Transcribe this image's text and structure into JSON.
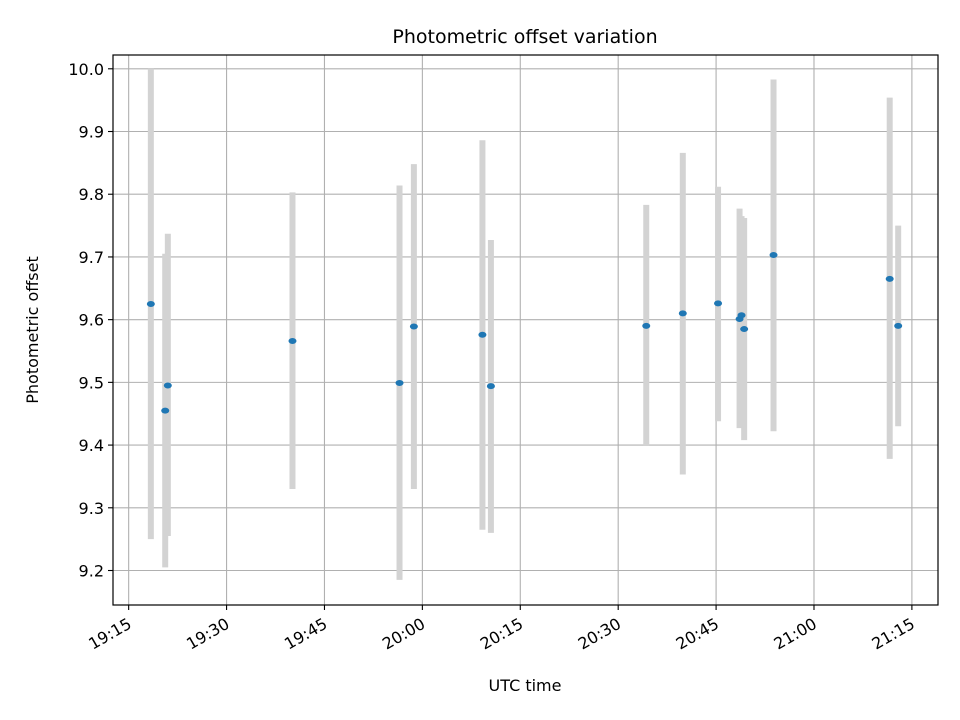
{
  "chart_data": {
    "type": "scatter",
    "title": "Photometric offset variation",
    "xlabel": "UTC time",
    "ylabel": "Photometric offset",
    "x_ticks": [
      "19:15",
      "19:30",
      "19:45",
      "20:00",
      "20:15",
      "20:30",
      "20:45",
      "21:00",
      "21:15"
    ],
    "y_ticks": [
      "9.2",
      "9.3",
      "9.4",
      "9.5",
      "9.6",
      "9.7",
      "9.8",
      "9.9",
      "10.0"
    ],
    "xlim": [
      "19:12.6",
      "21:19.0"
    ],
    "ylim": [
      9.145,
      10.022
    ],
    "grid": true,
    "colors": {
      "point": "#1f77b4",
      "errorbar": "#d3d3d3",
      "grid": "#b0b0b0"
    },
    "points": [
      {
        "x": "19:18.4",
        "y": 9.625,
        "low": 9.25,
        "high": 10.0
      },
      {
        "x": "19:20.6",
        "y": 9.455,
        "low": 9.205,
        "high": 9.705
      },
      {
        "x": "19:21.0",
        "y": 9.495,
        "low": 9.255,
        "high": 9.737
      },
      {
        "x": "19:40.1",
        "y": 9.566,
        "low": 9.33,
        "high": 9.803
      },
      {
        "x": "19:56.5",
        "y": 9.499,
        "low": 9.185,
        "high": 9.814
      },
      {
        "x": "19:58.7",
        "y": 9.589,
        "low": 9.33,
        "high": 9.848
      },
      {
        "x": "20:09.2",
        "y": 9.576,
        "low": 9.265,
        "high": 9.886
      },
      {
        "x": "20:10.5",
        "y": 9.494,
        "low": 9.26,
        "high": 9.727
      },
      {
        "x": "20:34.3",
        "y": 9.59,
        "low": 9.4,
        "high": 9.783
      },
      {
        "x": "20:39.9",
        "y": 9.61,
        "low": 9.353,
        "high": 9.866
      },
      {
        "x": "20:45.3",
        "y": 9.626,
        "low": 9.438,
        "high": 9.812
      },
      {
        "x": "20:48.6",
        "y": 9.601,
        "low": 9.427,
        "high": 9.777
      },
      {
        "x": "20:48.9",
        "y": 9.607,
        "low": 9.45,
        "high": 9.765
      },
      {
        "x": "20:49.3",
        "y": 9.585,
        "low": 9.408,
        "high": 9.762
      },
      {
        "x": "20:53.8",
        "y": 9.703,
        "low": 9.422,
        "high": 9.983
      },
      {
        "x": "21:11.6",
        "y": 9.665,
        "low": 9.378,
        "high": 9.954
      },
      {
        "x": "21:12.9",
        "y": 9.59,
        "low": 9.43,
        "high": 9.75
      }
    ]
  }
}
